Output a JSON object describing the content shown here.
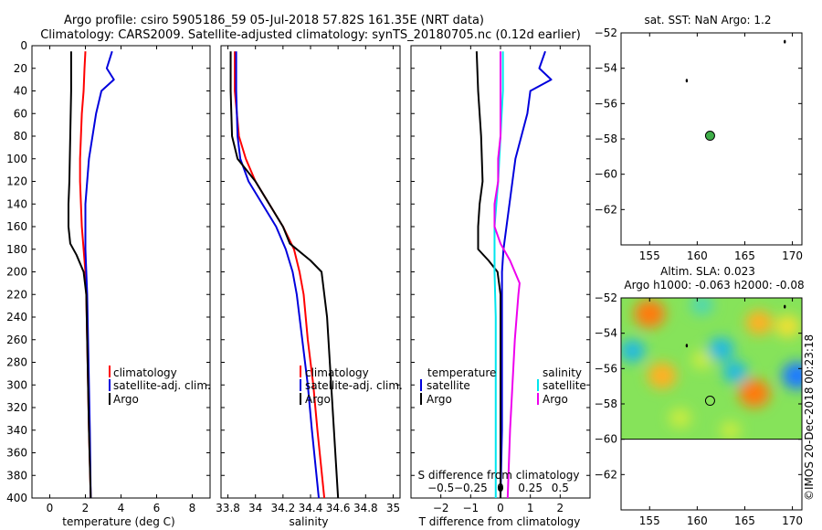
{
  "title": {
    "line1": "Argo profile: csiro 5905186_59 05-Jul-2018 57.82S 161.35E (NRT data)",
    "line2": "Climatology: CARS2009. Satellite-adjusted climatology: synTS_20180705.nc (0.12d earlier)"
  },
  "watermark": "©IMOS 20-Dec-2018 00:23:18",
  "colors": {
    "climatology": "#ff0000",
    "satellite": "#0000dd",
    "argo": "#000000",
    "sal_satellite": "#00e5ee",
    "sal_diff": "#ee00ee",
    "float_marker": "#3fae49",
    "land_dot": "#000000"
  },
  "chart_data": [
    {
      "id": "temperature",
      "type": "line",
      "xlabel": "temperature (deg C)",
      "xlim": [
        -1,
        9
      ],
      "xticks": [
        0,
        2,
        4,
        6,
        8
      ],
      "xticklabels": [
        "0",
        "2",
        "4",
        "6",
        "8"
      ],
      "ylim": [
        400,
        0
      ],
      "yticks": [
        0,
        20,
        40,
        60,
        80,
        100,
        120,
        140,
        160,
        180,
        200,
        220,
        240,
        260,
        280,
        300,
        320,
        340,
        360,
        380,
        400
      ],
      "yticklabels": [
        "0",
        "20",
        "40",
        "60",
        "80",
        "100",
        "120",
        "140",
        "160",
        "180",
        "200",
        "220",
        "240",
        "260",
        "280",
        "300",
        "320",
        "340",
        "360",
        "380",
        "400"
      ],
      "legend": [
        "climatology",
        "satellite-adj. clim.",
        "Argo"
      ],
      "series": [
        {
          "name": "climatology",
          "depth": [
            5,
            20,
            40,
            60,
            80,
            100,
            120,
            140,
            160,
            180,
            200,
            220,
            260,
            300,
            340,
            400
          ],
          "values": [
            2.0,
            1.95,
            1.9,
            1.8,
            1.75,
            1.7,
            1.7,
            1.75,
            1.8,
            1.9,
            2.0,
            2.05,
            2.1,
            2.15,
            2.2,
            2.3
          ]
        },
        {
          "name": "satellite-adj. clim.",
          "depth": [
            5,
            20,
            30,
            40,
            60,
            80,
            100,
            120,
            140,
            160,
            180,
            200,
            220,
            260,
            300,
            340,
            400
          ],
          "values": [
            3.5,
            3.2,
            3.6,
            2.9,
            2.6,
            2.4,
            2.2,
            2.1,
            2.0,
            2.0,
            2.0,
            2.05,
            2.1,
            2.15,
            2.2,
            2.25,
            2.3
          ]
        },
        {
          "name": "Argo",
          "depth": [
            5,
            40,
            80,
            120,
            140,
            160,
            175,
            185,
            200,
            220,
            260,
            300,
            340,
            400
          ],
          "values": [
            1.2,
            1.2,
            1.15,
            1.1,
            1.05,
            1.05,
            1.15,
            1.5,
            1.9,
            2.05,
            2.1,
            2.15,
            2.2,
            2.3
          ]
        }
      ]
    },
    {
      "id": "salinity",
      "type": "line",
      "xlabel": "salinity",
      "xlim": [
        33.75,
        35.05
      ],
      "xticks": [
        33.8,
        34.0,
        34.2,
        34.4,
        34.6,
        34.8,
        35.0
      ],
      "xticklabels": [
        "33.8",
        "34",
        "34.2",
        "34.4",
        "34.6",
        "34.8",
        "35"
      ],
      "ylim": [
        400,
        0
      ],
      "legend": [
        "climatology",
        "satellite-adj. clim.",
        "Argo"
      ],
      "series": [
        {
          "name": "climatology",
          "depth": [
            5,
            40,
            80,
            100,
            120,
            140,
            160,
            180,
            200,
            220,
            260,
            300,
            340,
            400
          ],
          "values": [
            33.85,
            33.85,
            33.88,
            33.93,
            34.0,
            34.1,
            34.2,
            34.28,
            34.32,
            34.35,
            34.38,
            34.42,
            34.45,
            34.5
          ]
        },
        {
          "name": "satellite-adj. clim.",
          "depth": [
            5,
            40,
            80,
            100,
            120,
            140,
            160,
            180,
            200,
            220,
            260,
            300,
            340,
            400
          ],
          "values": [
            33.86,
            33.86,
            33.87,
            33.89,
            33.95,
            34.05,
            34.15,
            34.22,
            34.27,
            34.3,
            34.34,
            34.38,
            34.41,
            34.46
          ]
        },
        {
          "name": "Argo",
          "depth": [
            5,
            40,
            80,
            100,
            120,
            140,
            160,
            175,
            190,
            200,
            220,
            240,
            260,
            300,
            340,
            400
          ],
          "values": [
            33.82,
            33.82,
            33.83,
            33.87,
            34.0,
            34.1,
            34.2,
            34.25,
            34.4,
            34.48,
            34.5,
            34.52,
            34.53,
            34.55,
            34.57,
            34.6
          ]
        }
      ]
    },
    {
      "id": "difference",
      "type": "line",
      "xlabel": "T difference from climatology",
      "top_axis_label": "S difference from climatology",
      "xlim": [
        -3,
        3
      ],
      "xticks": [
        -2,
        -1,
        0,
        1,
        2
      ],
      "xticklabels": [
        "−2",
        "−1",
        "0",
        "1",
        "2"
      ],
      "sticks": [
        -0.5,
        -0.25,
        0,
        0.25,
        0.5
      ],
      "sticklabels": [
        "−0.5",
        "−0.25",
        "0",
        "0.25",
        "0.5"
      ],
      "ylim": [
        400,
        0
      ],
      "legend": {
        "temperature": "temperature",
        "salinity": "salinity",
        "satellite": "satellite",
        "argo": "Argo"
      },
      "series": [
        {
          "name": "T satellite",
          "depth": [
            5,
            20,
            30,
            40,
            60,
            80,
            100,
            120,
            140,
            160,
            180,
            200,
            260,
            300,
            340,
            400
          ],
          "values": [
            1.5,
            1.3,
            1.7,
            1.0,
            0.9,
            0.7,
            0.5,
            0.4,
            0.3,
            0.2,
            0.1,
            0.05,
            0.05,
            0.05,
            0.05,
            0.0
          ]
        },
        {
          "name": "T Argo",
          "depth": [
            5,
            40,
            80,
            120,
            140,
            160,
            180,
            190,
            200,
            220,
            260,
            300,
            340,
            400
          ],
          "values": [
            -0.8,
            -0.75,
            -0.65,
            -0.6,
            -0.7,
            -0.75,
            -0.75,
            -0.4,
            -0.1,
            0.0,
            0.0,
            0.0,
            0.0,
            0.0
          ]
        },
        {
          "name": "S satellite",
          "depth": [
            5,
            40,
            80,
            120,
            160,
            200,
            240,
            300,
            340,
            400
          ],
          "values": [
            0.02,
            0.02,
            0.0,
            -0.02,
            -0.05,
            -0.05,
            -0.04,
            -0.04,
            -0.04,
            -0.04
          ]
        },
        {
          "name": "S Argo",
          "depth": [
            5,
            40,
            80,
            100,
            120,
            140,
            160,
            175,
            190,
            200,
            210,
            220,
            260,
            300,
            340,
            400
          ],
          "values": [
            0.0,
            0.0,
            0.0,
            -0.02,
            -0.02,
            -0.05,
            -0.05,
            0.0,
            0.08,
            0.12,
            0.16,
            0.15,
            0.12,
            0.1,
            0.08,
            0.06
          ]
        }
      ]
    },
    {
      "id": "sst_map",
      "type": "map",
      "title": "sat. SST: NaN Argo: 1.2",
      "xlim": [
        152,
        171
      ],
      "ylim": [
        -64,
        -52
      ],
      "xticks": [
        155,
        160,
        165,
        170
      ],
      "xticklabels": [
        "155",
        "160",
        "165",
        "170"
      ],
      "yticks": [
        -52,
        -54,
        -56,
        -58,
        -60,
        -62
      ],
      "yticklabels": [
        "−52",
        "−54",
        "−56",
        "−58",
        "−60",
        "−62"
      ],
      "float_position": {
        "lon": 161.35,
        "lat": -57.82
      },
      "islands": [
        {
          "lon": 158.9,
          "lat": -54.7
        },
        {
          "lon": 169.2,
          "lat": -52.5
        }
      ]
    },
    {
      "id": "sla_map",
      "type": "heatmap",
      "title_line1": "Altim. SLA: 0.023",
      "title_line2": "Argo h1000: -0.063 h2000: -0.08",
      "xlim": [
        152,
        171
      ],
      "ylim": [
        -64,
        -52
      ],
      "data_lat_min": -60,
      "xticks": [
        155,
        160,
        165,
        170
      ],
      "xticklabels": [
        "155",
        "160",
        "165",
        "170"
      ],
      "yticks": [
        -52,
        -54,
        -56,
        -58,
        -60,
        -62
      ],
      "yticklabels": [
        "−52",
        "−54",
        "−56",
        "−58",
        "−60",
        "−62"
      ],
      "float_position": {
        "lon": 161.35,
        "lat": -57.82
      },
      "islands": [
        {
          "lon": 158.9,
          "lat": -54.7
        },
        {
          "lon": 169.2,
          "lat": -52.5
        }
      ],
      "blobs": [
        {
          "lon": 155.0,
          "lat": -52.9,
          "value": 0.9
        },
        {
          "lon": 166.5,
          "lat": -53.4,
          "value": 0.6
        },
        {
          "lon": 169.5,
          "lat": -53.6,
          "value": 0.45
        },
        {
          "lon": 156.3,
          "lat": -56.4,
          "value": 0.75
        },
        {
          "lon": 166.0,
          "lat": -57.4,
          "value": 0.9
        },
        {
          "lon": 160.5,
          "lat": -55.5,
          "value": 0.2
        },
        {
          "lon": 158.2,
          "lat": -58.8,
          "value": 0.3
        },
        {
          "lon": 153.2,
          "lat": -55.0,
          "value": -0.5
        },
        {
          "lon": 162.5,
          "lat": -54.9,
          "value": -0.55
        },
        {
          "lon": 164.0,
          "lat": -56.2,
          "value": -0.45
        },
        {
          "lon": 170.5,
          "lat": -56.4,
          "value": -0.85
        },
        {
          "lon": 160.5,
          "lat": -52.4,
          "value": -0.35
        },
        {
          "lon": 163.5,
          "lat": -59.5,
          "value": 0.15
        }
      ]
    }
  ]
}
